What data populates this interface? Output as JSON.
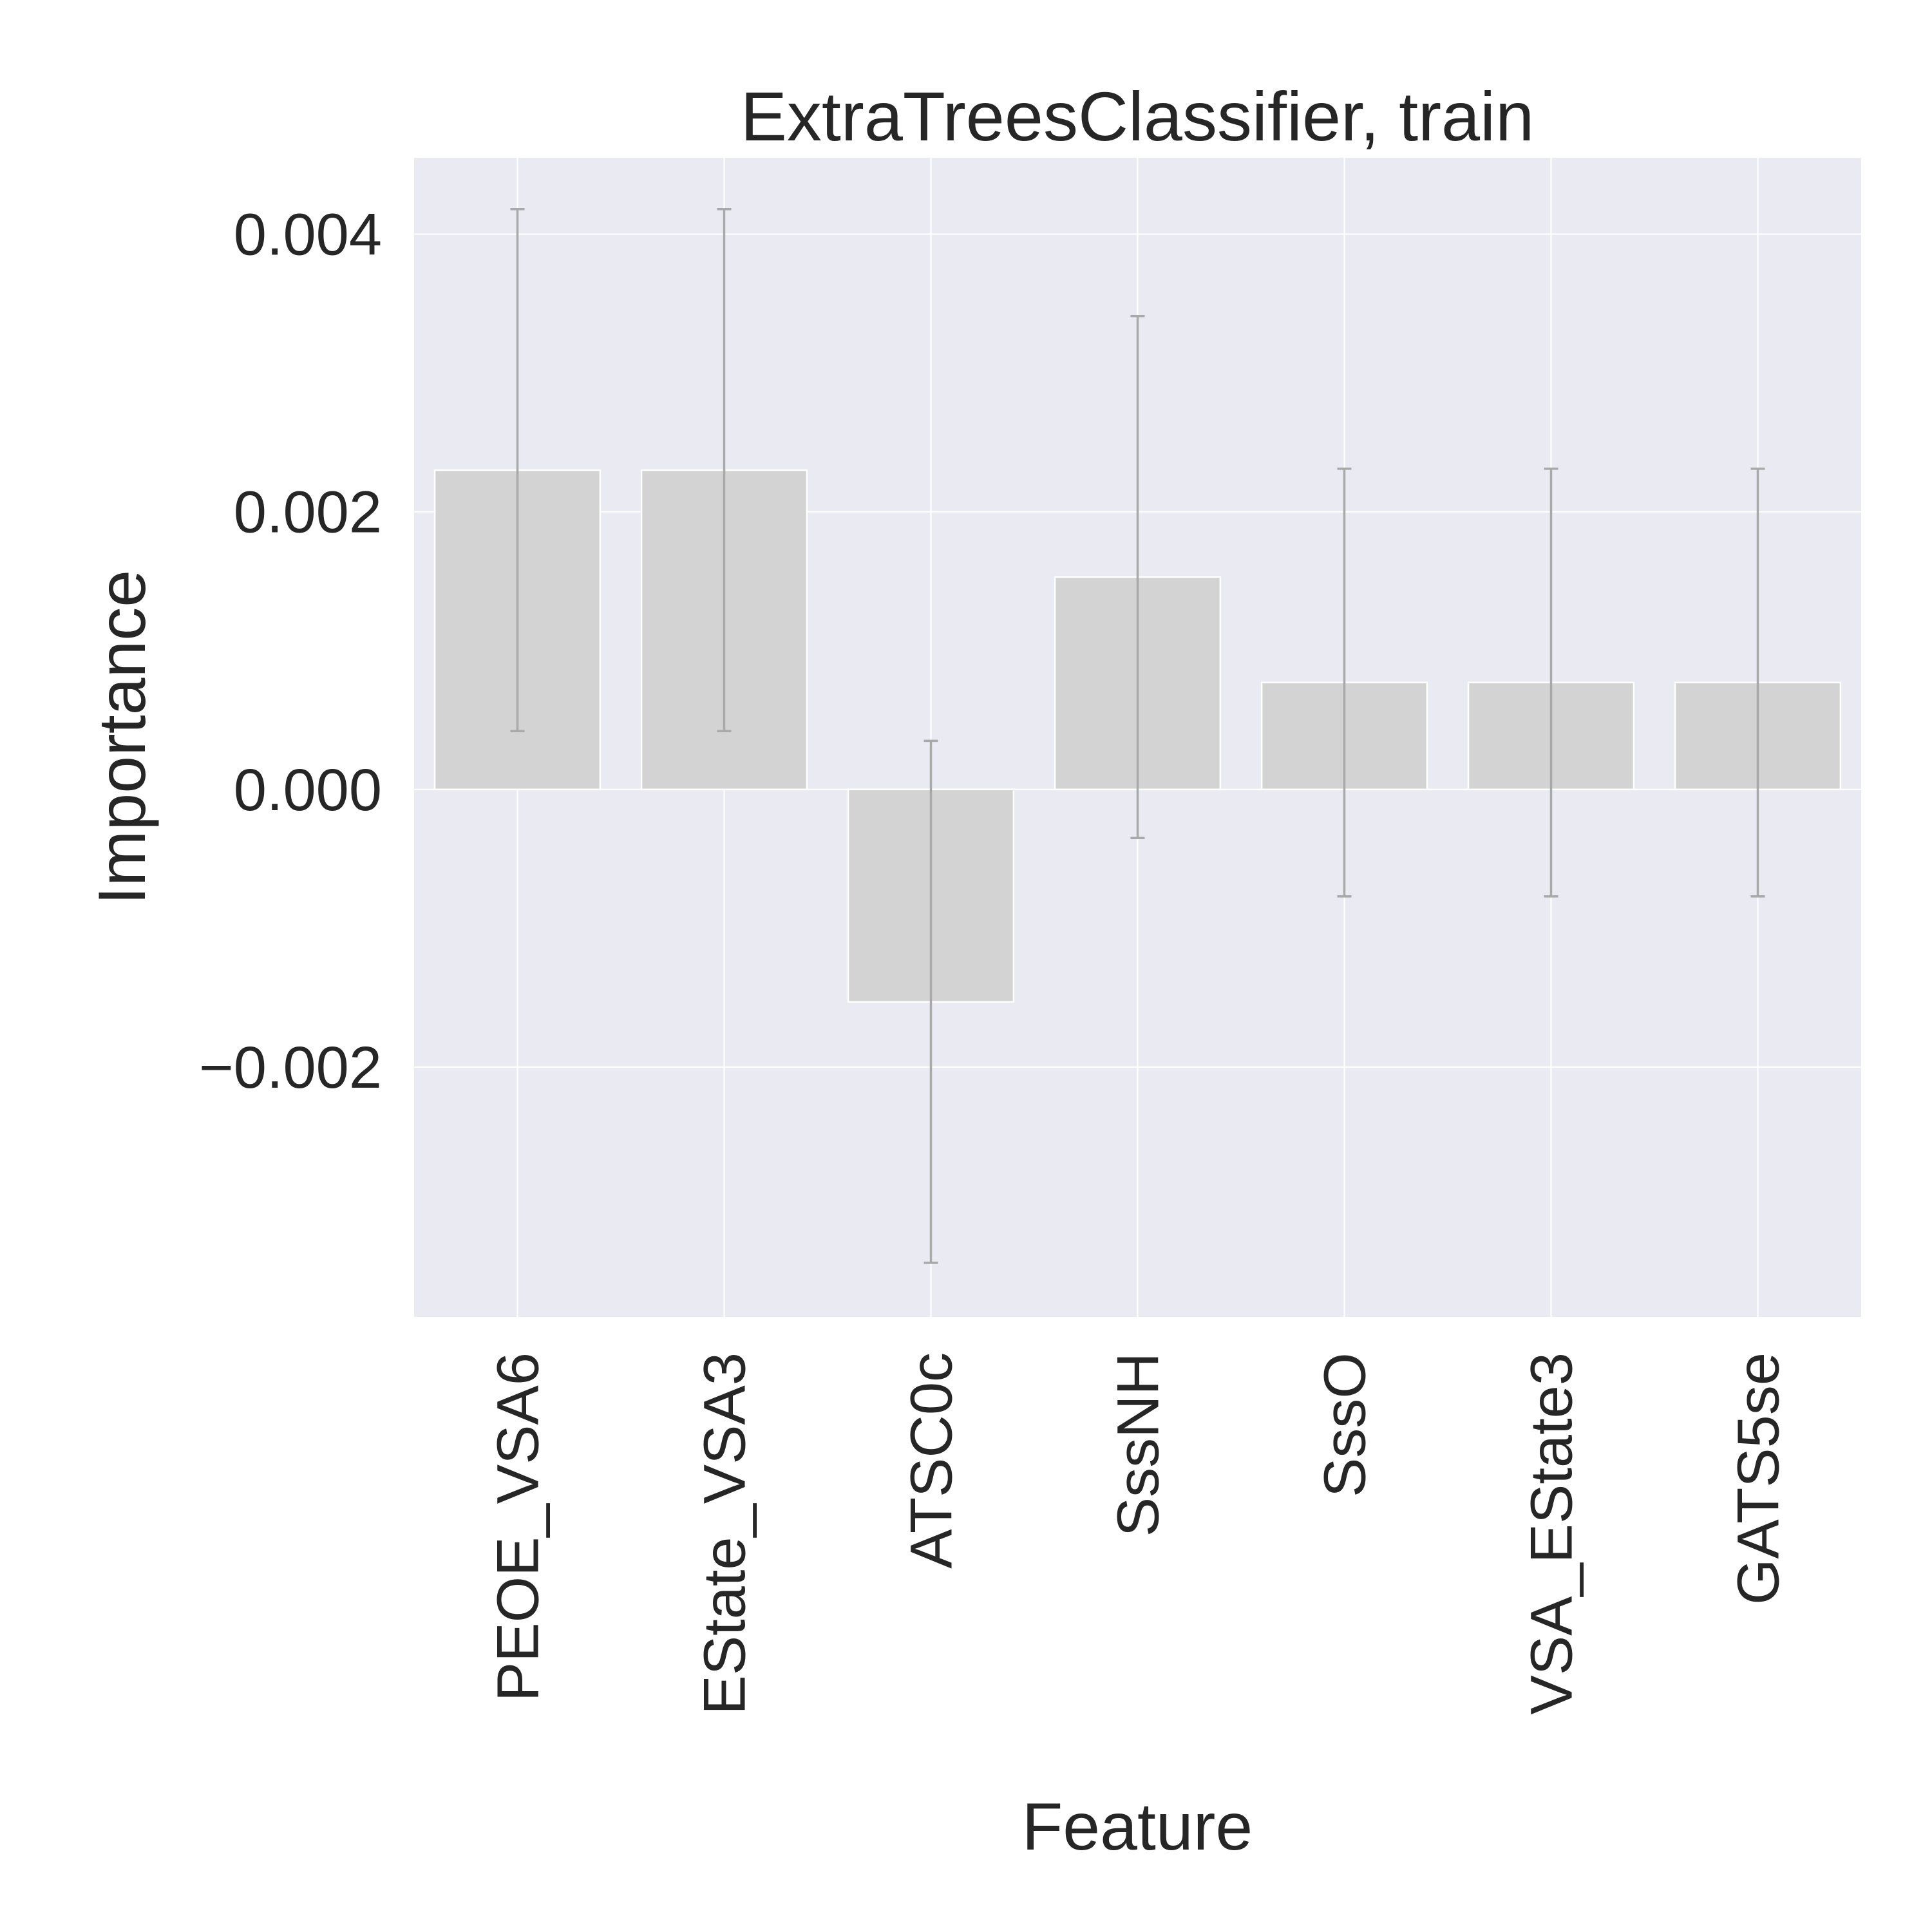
{
  "chart_data": {
    "type": "bar",
    "title": "ExtraTreesClassifier, train",
    "xlabel": "Feature",
    "ylabel": "Importance",
    "categories": [
      "PEOE_VSA6",
      "EState_VSA3",
      "ATSC0c",
      "SssNH",
      "SssO",
      "VSA_EState3",
      "GATS5se"
    ],
    "values": [
      0.0023,
      0.0023,
      -0.00153,
      0.00153,
      0.00077,
      0.00077,
      0.00077
    ],
    "error": [
      0.00188,
      0.00188,
      0.00188,
      0.00188,
      0.00154,
      0.00154,
      0.00154
    ],
    "ylim": [
      -0.0038,
      0.00455
    ],
    "yticks": [
      -0.002,
      0.0,
      0.002,
      0.004
    ],
    "ytick_labels": [
      "−0.002",
      "0.000",
      "0.002",
      "0.004"
    ],
    "grid": true,
    "colors": {
      "plot_background": "#eaeaf2",
      "grid": "#ffffff",
      "bar_fill": "#d3d3d3",
      "bar_edge": "#ffffff",
      "error_bar": "#a9a9a9",
      "text": "#262626"
    }
  }
}
